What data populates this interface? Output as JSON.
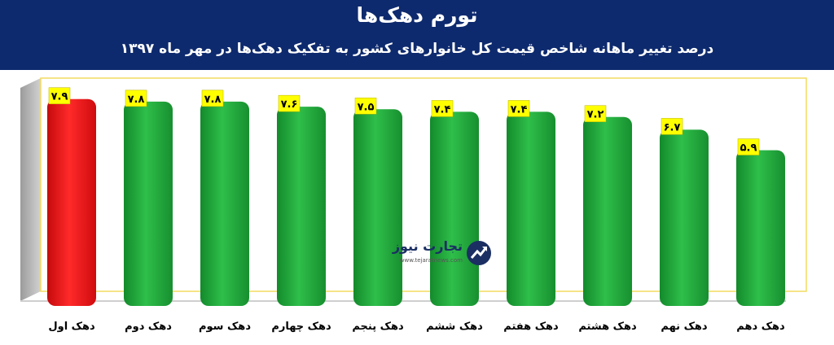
{
  "title": "تورم دهک‌ها",
  "subtitle": "درصد تغییر ماهانه شاخص قیمت کل خانوارهای کشور به تفکیک دهک‌ها در مهر ماه ۱۳۹۷",
  "watermark": {
    "brand": "تجارت نیوز",
    "url": "www.tejaratnews.com"
  },
  "colors": {
    "header": "#0e2a6e",
    "bar_default": "#22a63a",
    "bar_highlight": "#e80f12",
    "label_box": "#ffff00",
    "frame_border": "#f2dc60"
  },
  "chart_data": {
    "type": "bar",
    "categories": [
      "دهک اول",
      "دهک دوم",
      "دهک سوم",
      "دهک چهارم",
      "دهک پنجم",
      "دهک ششم",
      "دهک هفتم",
      "دهک هشتم",
      "دهک نهم",
      "دهک دهم"
    ],
    "values": [
      7.9,
      7.8,
      7.8,
      7.6,
      7.5,
      7.4,
      7.4,
      7.2,
      6.7,
      5.9
    ],
    "value_labels": [
      "۷.۹",
      "۷.۸",
      "۷.۸",
      "۷.۶",
      "۷.۵",
      "۷.۴",
      "۷.۴",
      "۷.۲",
      "۶.۷",
      "۵.۹"
    ],
    "highlight_index": 0,
    "ylim": [
      0,
      8.4
    ],
    "grid": false,
    "legend": "none",
    "xlabel": "",
    "ylabel": ""
  }
}
